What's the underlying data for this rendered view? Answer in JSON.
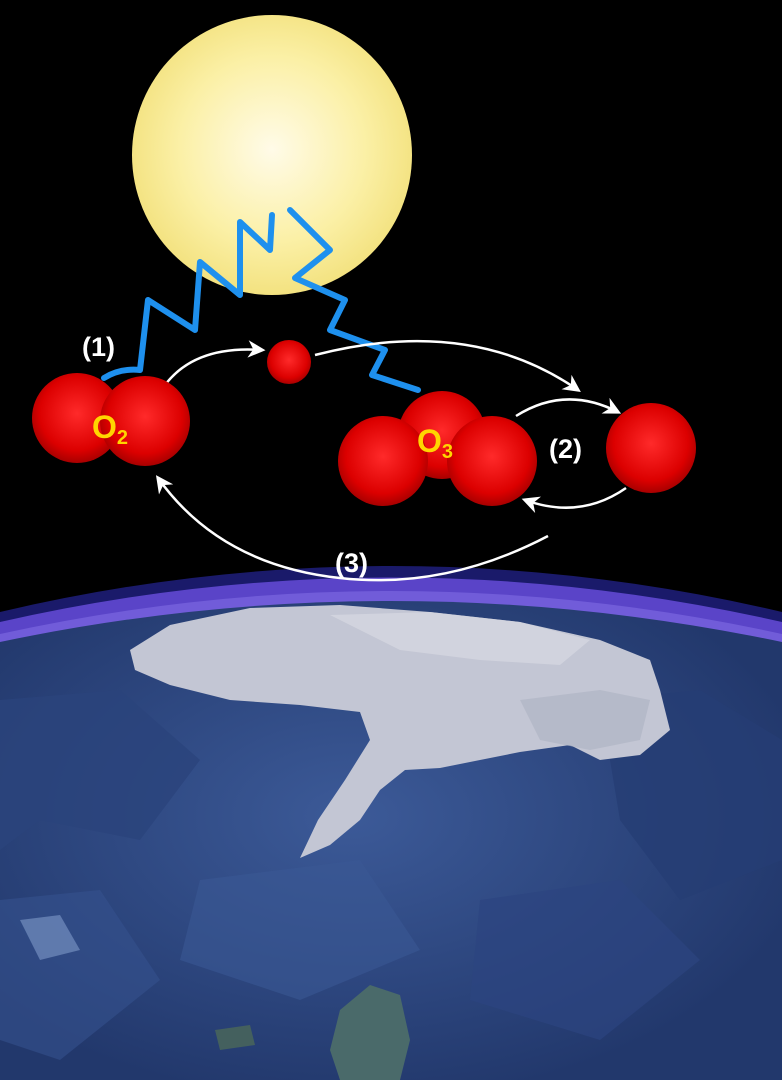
{
  "diagram": {
    "step_labels": {
      "step1": "(1)",
      "step2": "(2)",
      "step3": "(3)"
    },
    "molecules": {
      "oxygen": {
        "symbol": "O",
        "subscript": "2"
      },
      "ozone": {
        "symbol": "O",
        "subscript": "3"
      }
    },
    "colors": {
      "space": "#000000",
      "sun": "#fcf3a8",
      "uv_wave": "#1e90ee",
      "atom": "#e00000",
      "label_yellow": "#ffd500",
      "arrow": "#ffffff",
      "atmosphere": "#6a52d8",
      "ocean": "#2f4a86",
      "ice": "#c3c6d4"
    },
    "icons": [
      "sun-icon",
      "uv-wave-icon",
      "oxygen-atom-icon",
      "earth-icon"
    ]
  }
}
